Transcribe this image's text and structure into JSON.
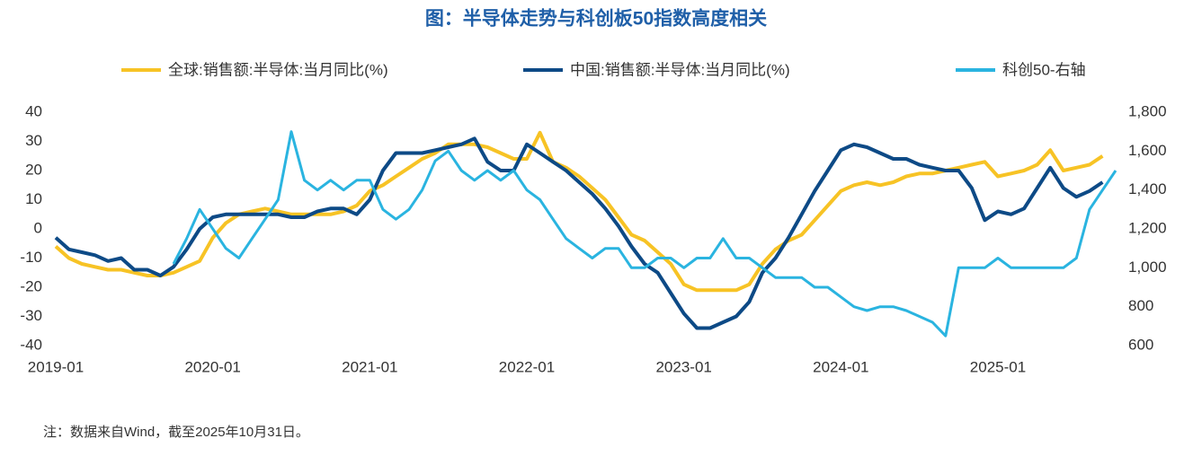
{
  "chart_data": {
    "type": "line",
    "title": "图：半导体走势与科创板50指数高度相关",
    "note": "注：数据来自Wind，截至2025年10月31日。",
    "categories": [
      "2019-01",
      null,
      null,
      null,
      null,
      null,
      null,
      null,
      null,
      null,
      null,
      null,
      "2020-01",
      null,
      null,
      null,
      null,
      null,
      null,
      null,
      null,
      null,
      null,
      null,
      "2021-01",
      null,
      null,
      null,
      null,
      null,
      null,
      null,
      null,
      null,
      null,
      null,
      "2022-01",
      null,
      null,
      null,
      null,
      null,
      null,
      null,
      null,
      null,
      null,
      null,
      "2023-01",
      null,
      null,
      null,
      null,
      null,
      null,
      null,
      null,
      null,
      null,
      null,
      "2024-01",
      null,
      null,
      null,
      null,
      null,
      null,
      null,
      null,
      null,
      null,
      null,
      "2025-01",
      null,
      null,
      null,
      null,
      null,
      null,
      null,
      null,
      null
    ],
    "ylim": [
      -40,
      40
    ],
    "yticks": [
      -40,
      -30,
      -20,
      -10,
      0,
      10,
      20,
      30,
      40
    ],
    "y2lim": [
      600,
      1800
    ],
    "y2ticks": [
      600,
      800,
      {
        "value": 1000,
        "label": "1,000"
      },
      {
        "value": 1200,
        "label": "1,200"
      },
      {
        "value": 1400,
        "label": "1,400"
      },
      {
        "value": 1600,
        "label": "1,600"
      },
      {
        "value": 1800,
        "label": "1,800"
      }
    ],
    "series": [
      {
        "name": "全球:销售额:半导体:当月同比(%)",
        "color": "#f7c325",
        "values": [
          -6,
          -10,
          -12,
          -13,
          -14,
          -14,
          -15,
          -16,
          -16,
          -15,
          -13,
          -11,
          -3,
          2,
          5,
          6,
          7,
          6,
          5,
          5,
          5,
          5,
          6,
          8,
          13,
          15,
          18,
          21,
          24,
          26,
          29,
          29,
          29,
          28,
          26,
          24,
          24,
          33,
          23,
          21,
          18,
          14,
          10,
          4,
          -2,
          -4,
          -8,
          -12,
          -19,
          -21,
          -21,
          -21,
          -21,
          -19,
          -12,
          -7,
          -4,
          -2,
          3,
          8,
          13,
          15,
          16,
          15,
          16,
          18,
          19,
          19,
          20,
          21,
          22,
          23,
          18,
          19,
          20,
          22,
          27,
          20,
          21,
          22,
          25,
          null
        ]
      },
      {
        "name": "中国:销售额:半导体:当月同比(%)",
        "color": "#0d4a86",
        "values": [
          -3,
          -7,
          -8,
          -9,
          -11,
          -10,
          -14,
          -14,
          -16,
          -13,
          -7,
          0,
          4,
          5,
          5,
          5,
          5,
          5,
          4,
          4,
          6,
          7,
          7,
          5,
          10,
          20,
          26,
          26,
          26,
          27,
          28,
          29,
          31,
          23,
          20,
          20,
          29,
          26,
          23,
          20,
          16,
          12,
          7,
          1,
          -6,
          -12,
          -15,
          -22,
          -29,
          -34,
          -34,
          -32,
          -30,
          -25,
          -15,
          -10,
          -3,
          5,
          13,
          20,
          27,
          29,
          28,
          26,
          24,
          24,
          22,
          21,
          20,
          20,
          14,
          3,
          6,
          5,
          7,
          14,
          21,
          14,
          11,
          13,
          16,
          null
        ]
      },
      {
        "name": "科创50-右轴",
        "color": "#2ab4e0",
        "axis": "y2",
        "values": [
          null,
          null,
          null,
          null,
          null,
          null,
          null,
          null,
          null,
          1020,
          1150,
          1300,
          1200,
          1100,
          1050,
          1150,
          1250,
          1350,
          1700,
          1450,
          1400,
          1450,
          1400,
          1450,
          1450,
          1300,
          1250,
          1300,
          1400,
          1550,
          1600,
          1500,
          1450,
          1500,
          1450,
          1500,
          1400,
          1350,
          1250,
          1150,
          1100,
          1050,
          1100,
          1100,
          1000,
          1000,
          1050,
          1050,
          1000,
          1050,
          1050,
          1150,
          1050,
          1050,
          1000,
          950,
          950,
          950,
          900,
          900,
          850,
          800,
          780,
          800,
          800,
          780,
          750,
          720,
          650,
          1000,
          1000,
          1000,
          1050,
          1000,
          1000,
          1000,
          1000,
          1000,
          1050,
          1300,
          1400,
          1500
        ]
      }
    ]
  }
}
